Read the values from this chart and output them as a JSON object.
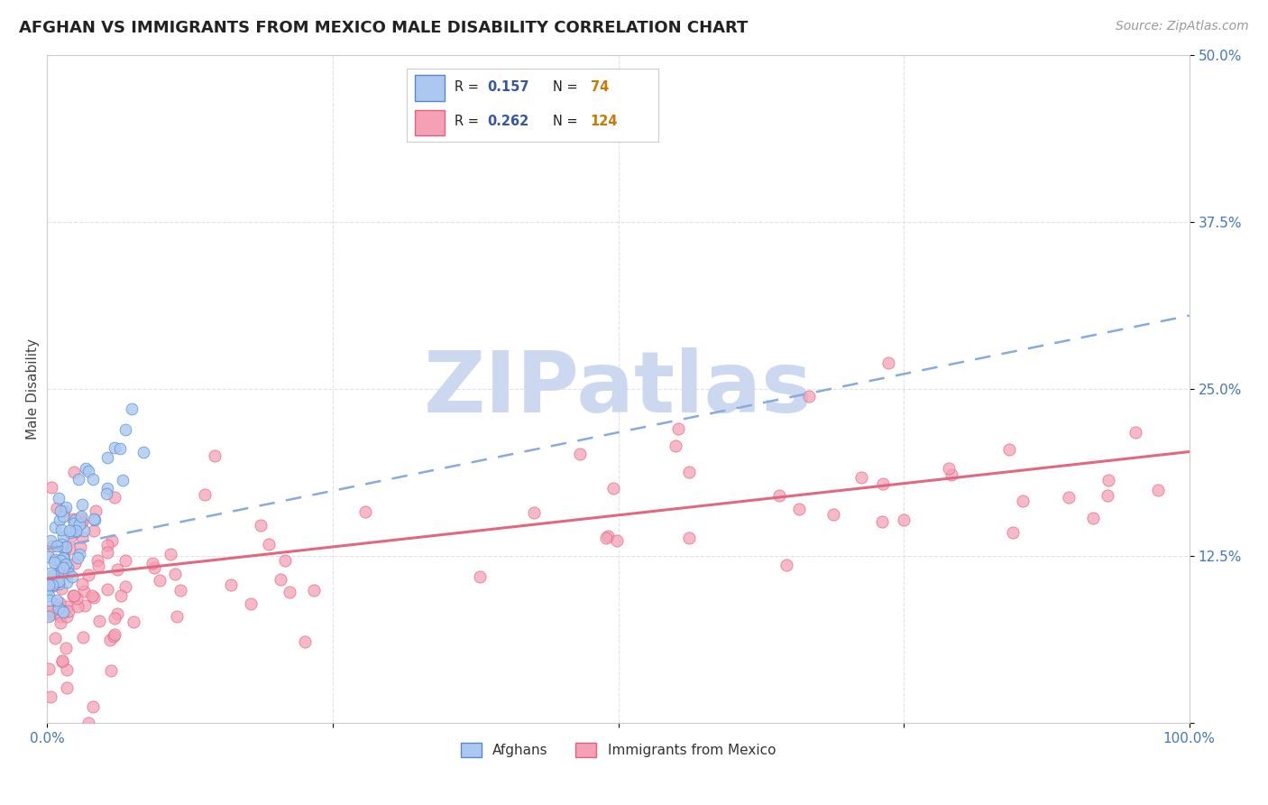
{
  "title": "AFGHAN VS IMMIGRANTS FROM MEXICO MALE DISABILITY CORRELATION CHART",
  "source": "Source: ZipAtlas.com",
  "ylabel": "Male Disability",
  "xlim": [
    0,
    1.0
  ],
  "ylim": [
    0,
    0.5
  ],
  "x_tick_labels": [
    "0.0%",
    "",
    "",
    "",
    "100.0%"
  ],
  "y_tick_labels": [
    "",
    "12.5%",
    "25.0%",
    "37.5%",
    "50.0%"
  ],
  "afghan_R": 0.157,
  "afghan_N": 74,
  "mexico_R": 0.262,
  "mexico_N": 124,
  "afghan_color": "#aac8f0",
  "mexico_color": "#f5a0b5",
  "afghan_edge": "#5588cc",
  "mexico_edge": "#e06080",
  "trend_afghan_color": "#88aadd",
  "trend_mexico_color": "#e06880",
  "watermark": "ZIPatlas",
  "watermark_color": "#ccd8f0",
  "legend_color": "#3355aa",
  "background_color": "#ffffff",
  "tick_color": "#4477bb",
  "grid_color": "#ddddee",
  "spine_color": "#cccccc"
}
